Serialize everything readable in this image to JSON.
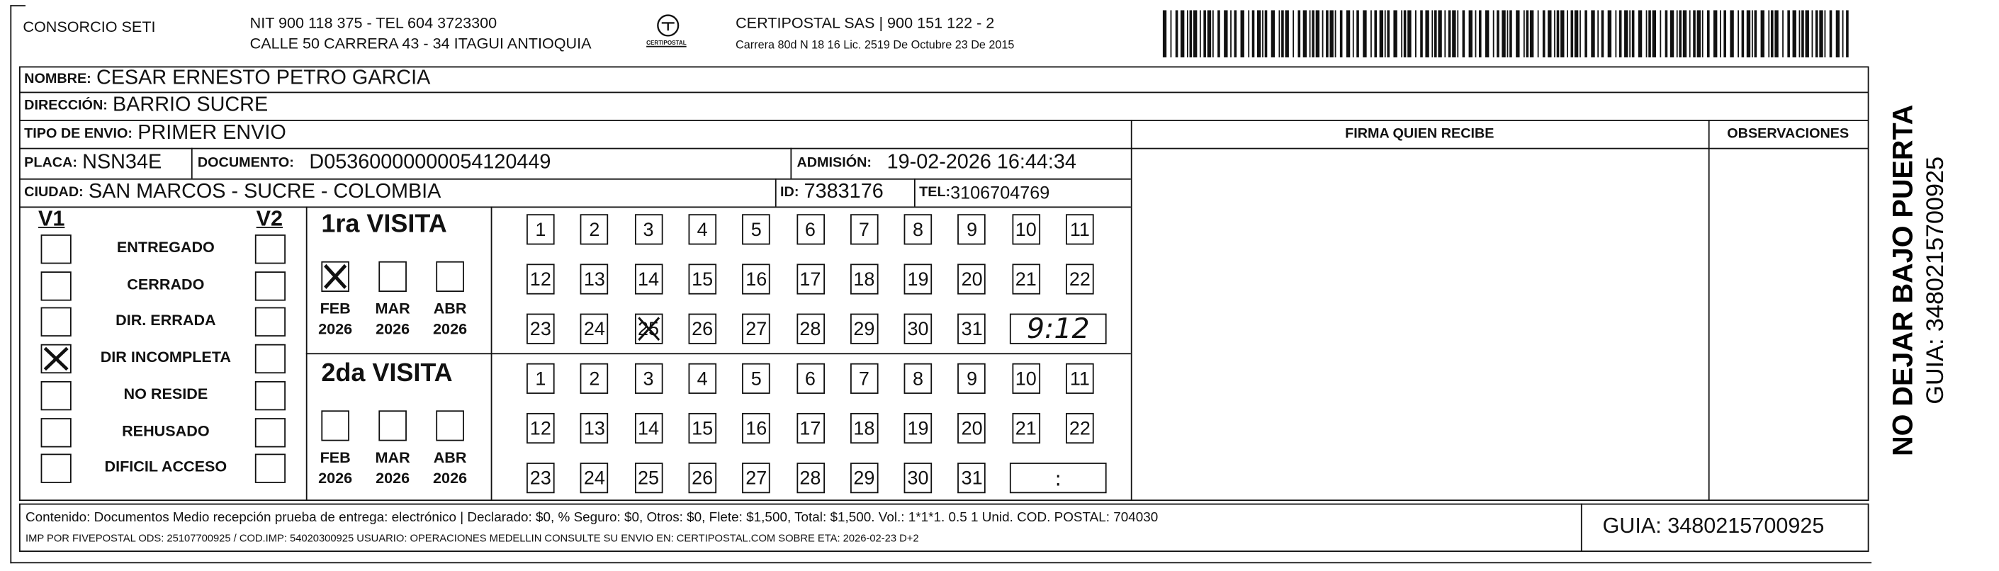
{
  "header": {
    "company": "CONSORCIO SETI",
    "nit": "NIT 900 118 375 - TEL 604 3723300",
    "address": "CALLE 50 CARRERA 43 - 34 ITAGUI ANTIOQUIA",
    "logo_text": "CERTIPOSTAL",
    "carrier": "CERTIPOSTAL SAS | 900 151 122 - 2",
    "license": "Carrera 80d N 18 16 Lic. 2519 De Octubre 23 De 2015"
  },
  "fields": {
    "nombre": {
      "label": "NOMBRE:",
      "value": "CESAR ERNESTO PETRO GARCIA"
    },
    "direccion": {
      "label": "DIRECCIÓN:",
      "value": "BARRIO SUCRE"
    },
    "tipo": {
      "label": "TIPO DE ENVIO:",
      "value": "PRIMER ENVIO"
    },
    "placa": {
      "label": "PLACA:",
      "value": "NSN34E"
    },
    "documento": {
      "label": "DOCUMENTO:",
      "value": "D05360000000054120449"
    },
    "admision": {
      "label": "ADMISIÓN:",
      "value": "19-02-2026 16:44:34"
    },
    "ciudad": {
      "label": "CIUDAD:",
      "value": "SAN MARCOS - SUCRE - COLOMBIA"
    },
    "id": {
      "label": "ID:",
      "value": "7383176"
    },
    "tel": {
      "label": "TEL:",
      "value": "3106704769"
    }
  },
  "columns": {
    "firma": "FIRMA QUIEN RECIBE",
    "observaciones": "OBSERVACIONES"
  },
  "status": {
    "v1": "V1",
    "v2": "V2",
    "items": [
      {
        "label": "ENTREGADO",
        "v1": false,
        "v2": false
      },
      {
        "label": "CERRADO",
        "v1": false,
        "v2": false
      },
      {
        "label": "DIR. ERRADA",
        "v1": false,
        "v2": false
      },
      {
        "label": "DIR INCOMPLETA",
        "v1": true,
        "v2": false
      },
      {
        "label": "NO RESIDE",
        "v1": false,
        "v2": false
      },
      {
        "label": "REHUSADO",
        "v1": false,
        "v2": false
      },
      {
        "label": "DIFICIL ACCESO",
        "v1": false,
        "v2": false
      }
    ]
  },
  "visits": [
    {
      "title": "1ra VISITA",
      "months": [
        {
          "month": "FEB",
          "year": "2026",
          "checked": true
        },
        {
          "month": "MAR",
          "year": "2026",
          "checked": false
        },
        {
          "month": "ABR",
          "year": "2026",
          "checked": false
        }
      ],
      "days": [
        1,
        2,
        3,
        4,
        5,
        6,
        7,
        8,
        9,
        10,
        11,
        12,
        13,
        14,
        15,
        16,
        17,
        18,
        19,
        20,
        21,
        22,
        23,
        24,
        25,
        26,
        27,
        28,
        29,
        30,
        31
      ],
      "crossed_days": [
        25
      ],
      "time": "9:12"
    },
    {
      "title": "2da VISITA",
      "months": [
        {
          "month": "FEB",
          "year": "2026",
          "checked": false
        },
        {
          "month": "MAR",
          "year": "2026",
          "checked": false
        },
        {
          "month": "ABR",
          "year": "2026",
          "checked": false
        }
      ],
      "days": [
        1,
        2,
        3,
        4,
        5,
        6,
        7,
        8,
        9,
        10,
        11,
        12,
        13,
        14,
        15,
        16,
        17,
        18,
        19,
        20,
        21,
        22,
        23,
        24,
        25,
        26,
        27,
        28,
        29,
        30,
        31
      ],
      "crossed_days": [],
      "time": ":"
    }
  ],
  "footer": {
    "content": "Contenido: Documentos Medio recepción prueba de entrega: electrónico | Declarado: $0, % Seguro: $0, Otros: $0, Flete: $1,500, Total: $1,500. Vol.: 1*1*1. 0.5  1 Unid. COD. POSTAL: 704030",
    "imp": "IMP POR FIVEPOSTAL ODS: 25107700925 / COD.IMP: 54020300925 USUARIO: OPERACIONES MEDELLIN CONSULTE SU ENVIO EN: CERTIPOSTAL.COM SOBRE ETA: 2026-02-23 D+2",
    "guia": "GUIA: 3480215700925"
  },
  "side": {
    "warning": "NO DEJAR BAJO PUERTA",
    "guia": "GUIA: 3480215700925"
  }
}
